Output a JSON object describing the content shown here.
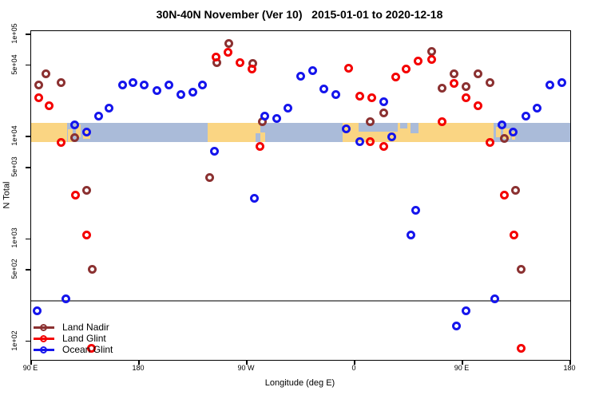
{
  "title": "30N-40N November (Ver 10)   2015-01-01 to 2020-12-18",
  "chart_data": {
    "type": "scatter",
    "title": "30N-40N November (Ver 10)   2015-01-01 to 2020-12-18",
    "xlabel": "Longitude (deg E)",
    "ylabel": "N Total",
    "x_axis": {
      "note": "longitude axis wraps eastward starting at 90E; positions in cumulative deg",
      "domain_deg": [
        90,
        540
      ],
      "ticks": [
        {
          "label": "90 E",
          "deg": 90
        },
        {
          "label": "180",
          "deg": 180
        },
        {
          "label": "90 W",
          "deg": 270
        },
        {
          "label": "0",
          "deg": 360
        },
        {
          "label": "90 E",
          "deg": 450
        },
        {
          "label": "180",
          "deg": 540
        }
      ]
    },
    "y_axis": {
      "scale": "log",
      "domain": [
        66,
        107000
      ],
      "ticks": [
        {
          "label": "1e+05",
          "value": 100000
        },
        {
          "label": "5e+04",
          "value": 50000
        },
        {
          "label": "1e+04",
          "value": 10000
        },
        {
          "label": "5e+03",
          "value": 5000
        },
        {
          "label": "1e+03",
          "value": 1000
        },
        {
          "label": "5e+02",
          "value": 500
        },
        {
          "label": "1e+02",
          "value": 100
        }
      ],
      "grid": false
    },
    "reference_line": {
      "value": 250,
      "color": "#7a7a7a"
    },
    "map_band": {
      "description": "30N-40N latitude strip world map drawn across the plot",
      "value_top": 13600,
      "value_bottom": 8900,
      "ocean_color": "#aabbd9",
      "land_color": "#fad583",
      "land_patches": [
        {
          "deg": [
            90,
            120
          ],
          "frac": [
            0,
            1
          ]
        },
        {
          "deg": [
            120.5,
            124.5
          ],
          "frac": [
            0.35,
            1
          ]
        },
        {
          "deg": [
            127,
            131
          ],
          "frac": [
            0.1,
            0.75
          ]
        },
        {
          "deg": [
            133,
            139
          ],
          "frac": [
            0.3,
            0.85
          ]
        },
        {
          "deg": [
            237,
            277
          ],
          "frac": [
            0,
            1
          ]
        },
        {
          "deg": [
            277,
            281.5
          ],
          "frac": [
            0,
            0.55
          ]
        },
        {
          "deg": [
            281.5,
            285
          ],
          "frac": [
            0.5,
            1
          ]
        },
        {
          "deg": [
            350,
            476
          ],
          "frac": [
            0,
            1
          ]
        },
        {
          "deg": [
            478,
            482
          ],
          "frac": [
            0.2,
            0.75
          ]
        },
        {
          "deg": [
            484,
            490
          ],
          "frac": [
            0.3,
            0.85
          ]
        },
        {
          "deg": [
            491,
            494
          ],
          "frac": [
            0.45,
            0.9
          ]
        }
      ],
      "ocean_cutouts": [
        {
          "deg": [
            363,
            396
          ],
          "frac": [
            0,
            0.45
          ]
        },
        {
          "deg": [
            398,
            404
          ],
          "frac": [
            0,
            0.28
          ]
        },
        {
          "deg": [
            406.5,
            413
          ],
          "frac": [
            0,
            0.55
          ]
        }
      ]
    },
    "series": [
      {
        "name": "Land Nadir",
        "color": "#8b3131",
        "points": [
          [
            96,
            32000
          ],
          [
            102,
            41000
          ],
          [
            115,
            34000
          ],
          [
            126,
            9700
          ],
          [
            136,
            3000
          ],
          [
            141,
            500
          ],
          [
            239,
            4000
          ],
          [
            245,
            53000
          ],
          [
            255,
            82000
          ],
          [
            275,
            52000
          ],
          [
            283,
            14000
          ],
          [
            373,
            14000
          ],
          [
            384,
            17000
          ],
          [
            424,
            68000
          ],
          [
            433,
            30000
          ],
          [
            443,
            41000
          ],
          [
            453,
            31000
          ],
          [
            463,
            41000
          ],
          [
            473,
            34000
          ],
          [
            485,
            9600
          ],
          [
            494,
            3000
          ],
          [
            499,
            500
          ]
        ]
      },
      {
        "name": "Land Glint",
        "color": "#f40000",
        "points": [
          [
            96,
            24000
          ],
          [
            105,
            20000
          ],
          [
            115,
            8700
          ],
          [
            127,
            2700
          ],
          [
            136,
            1100
          ],
          [
            140,
            85
          ],
          [
            244,
            60000
          ],
          [
            254,
            67000
          ],
          [
            264,
            53000
          ],
          [
            274,
            46000
          ],
          [
            281,
            8000
          ],
          [
            355,
            47000
          ],
          [
            364,
            25000
          ],
          [
            373,
            8900
          ],
          [
            374,
            24000
          ],
          [
            384,
            8000
          ],
          [
            394,
            38000
          ],
          [
            403,
            46000
          ],
          [
            413,
            55000
          ],
          [
            424,
            57000
          ],
          [
            433,
            14000
          ],
          [
            443,
            33000
          ],
          [
            453,
            24000
          ],
          [
            463,
            20000
          ],
          [
            473,
            8700
          ],
          [
            485,
            2700
          ],
          [
            493,
            1100
          ],
          [
            499,
            85
          ]
        ]
      },
      {
        "name": "Ocean Glint",
        "color": "#1515ec",
        "points": [
          [
            95,
            200
          ],
          [
            119,
            260
          ],
          [
            126,
            13000
          ],
          [
            136,
            11000
          ],
          [
            146,
            16000
          ],
          [
            155,
            19000
          ],
          [
            166,
            32000
          ],
          [
            175,
            34000
          ],
          [
            184,
            32000
          ],
          [
            195,
            28000
          ],
          [
            205,
            32000
          ],
          [
            215,
            26000
          ],
          [
            225,
            27000
          ],
          [
            233,
            32000
          ],
          [
            243,
            7200
          ],
          [
            276,
            2500
          ],
          [
            285,
            16000
          ],
          [
            295,
            15000
          ],
          [
            304,
            19000
          ],
          [
            315,
            39000
          ],
          [
            325,
            44000
          ],
          [
            334,
            29000
          ],
          [
            344,
            26000
          ],
          [
            353,
            12000
          ],
          [
            364,
            8900
          ],
          [
            384,
            22000
          ],
          [
            391,
            10000
          ],
          [
            407,
            1100
          ],
          [
            411,
            1900
          ],
          [
            445,
            140
          ],
          [
            453,
            200
          ],
          [
            477,
            260
          ],
          [
            483,
            13000
          ],
          [
            492,
            11000
          ],
          [
            503,
            16000
          ],
          [
            512,
            19000
          ],
          [
            523,
            32000
          ],
          [
            533,
            34000
          ]
        ]
      }
    ],
    "legend": {
      "position": "bottom-left",
      "items": [
        "Land Nadir",
        "Land Glint",
        "Ocean Glint"
      ]
    }
  }
}
